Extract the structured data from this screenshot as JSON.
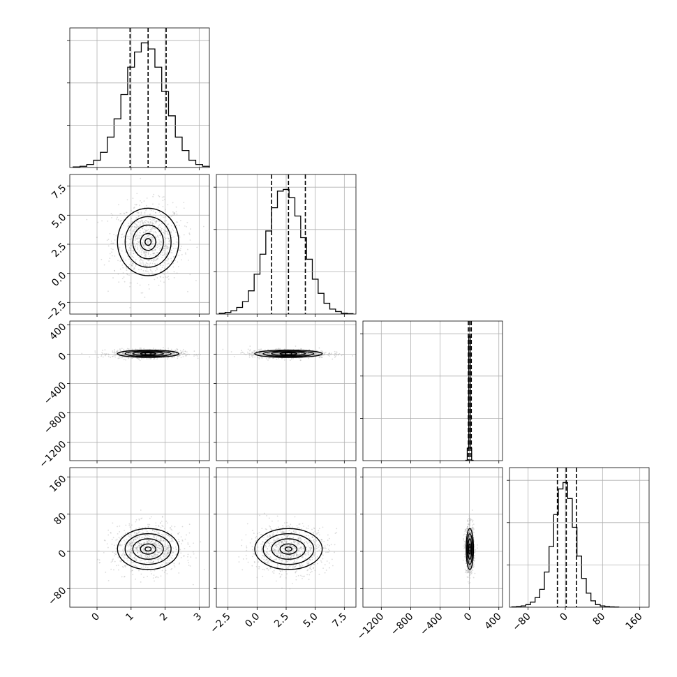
{
  "chart_data": {
    "type": "corner",
    "grid": true,
    "parameters": [
      {
        "range": [
          -0.8,
          3.3
        ],
        "mean": 1.5,
        "sd": 0.45,
        "quantiles": [
          0.97,
          1.5,
          2.03
        ],
        "ticks": [
          0,
          1,
          2,
          3
        ],
        "tick_labels": [
          "0",
          "1",
          "2",
          "3"
        ]
      },
      {
        "range": [
          -3.5,
          8.5
        ],
        "mean": 2.7,
        "sd": 1.45,
        "quantiles": [
          1.25,
          2.7,
          4.15
        ],
        "ticks": [
          -2.5,
          0.0,
          2.5,
          5.0,
          7.5
        ],
        "tick_labels": [
          "−2.5",
          "0.0",
          "2.5",
          "5.0",
          "7.5"
        ]
      },
      {
        "range": [
          -1450,
          450
        ],
        "mean": 5,
        "sd": 25,
        "quantiles": [
          -15,
          5,
          25
        ],
        "ticks": [
          -1200,
          -800,
          -400,
          0,
          400
        ],
        "tick_labels": [
          "−1200",
          "−800",
          "−400",
          "0",
          "400"
        ]
      },
      {
        "range": [
          -120,
          180
        ],
        "mean": 5,
        "sd": 22,
        "quantiles": [
          -17,
          2,
          24
        ],
        "ticks": [
          -80,
          0,
          80,
          160
        ],
        "tick_labels": [
          "−80",
          "0",
          "80",
          "160"
        ]
      }
    ],
    "histograms": [
      {
        "param": 0,
        "x": [
          -0.6,
          -0.4,
          -0.2,
          0.0,
          0.2,
          0.4,
          0.6,
          0.8,
          1.0,
          1.2,
          1.4,
          1.6,
          1.8,
          2.0,
          2.2,
          2.4,
          2.6,
          2.8,
          3.0,
          3.2
        ],
        "y": [
          1,
          2,
          5,
          12,
          25,
          50,
          80,
          120,
          165,
          190,
          205,
          195,
          165,
          125,
          85,
          50,
          28,
          12,
          5,
          2
        ]
      },
      {
        "param": 1,
        "x": [
          -3.0,
          -2.5,
          -2.0,
          -1.5,
          -1.0,
          -0.5,
          0.0,
          0.5,
          1.0,
          1.5,
          2.0,
          2.5,
          3.0,
          3.5,
          4.0,
          4.5,
          5.0,
          5.5,
          6.0,
          6.5,
          7.0,
          7.5,
          8.0
        ],
        "y": [
          1,
          2,
          4,
          8,
          15,
          28,
          48,
          72,
          100,
          128,
          148,
          150,
          140,
          118,
          92,
          66,
          42,
          25,
          13,
          6,
          3,
          1,
          0.5
        ]
      },
      {
        "param": 2,
        "x": [
          -40,
          -20,
          0,
          20,
          40
        ],
        "y": [
          0.5,
          20,
          200,
          20,
          0.5
        ]
      },
      {
        "param": 3,
        "x": [
          -110,
          -100,
          -90,
          -80,
          -70,
          -60,
          -50,
          -40,
          -30,
          -20,
          -10,
          0,
          10,
          20,
          30,
          40,
          50,
          60,
          70,
          80,
          90,
          100,
          110
        ],
        "y": [
          0.5,
          1,
          2,
          4,
          8,
          15,
          28,
          55,
          95,
          145,
          185,
          195,
          170,
          125,
          80,
          45,
          22,
          10,
          4,
          2,
          1,
          0.5,
          0.2
        ]
      }
    ],
    "pairs": [
      {
        "x_param": 0,
        "y_param": 1
      },
      {
        "x_param": 0,
        "y_param": 2
      },
      {
        "x_param": 1,
        "y_param": 2
      },
      {
        "x_param": 0,
        "y_param": 3
      },
      {
        "x_param": 1,
        "y_param": 3
      },
      {
        "x_param": 2,
        "y_param": 3
      }
    ]
  }
}
